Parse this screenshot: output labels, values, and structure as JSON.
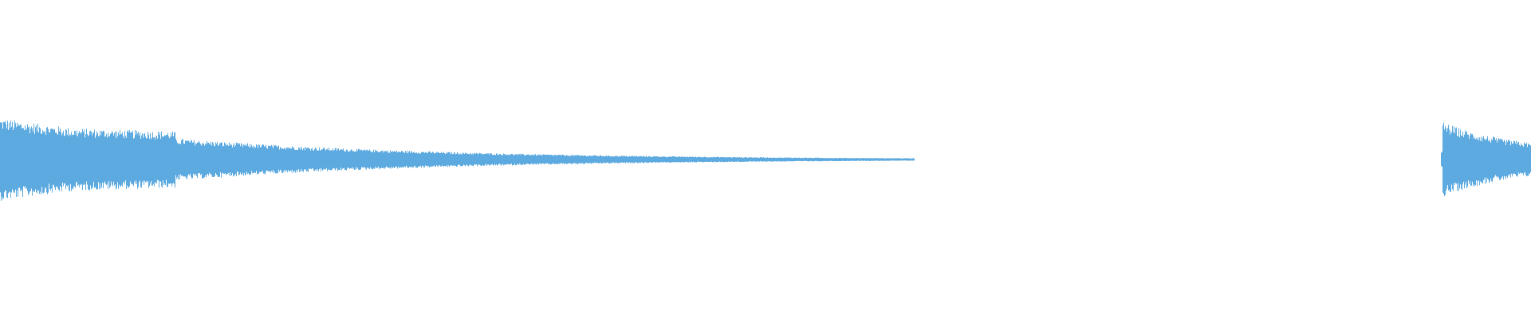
{
  "waveform": {
    "color": "#5DAAE0",
    "background": "#FFFFFF"
  }
}
